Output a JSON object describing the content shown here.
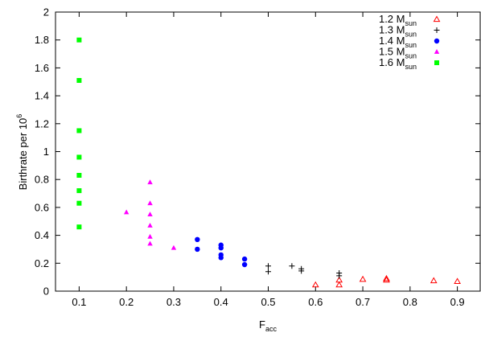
{
  "chart_data": {
    "type": "scatter",
    "title": "",
    "xlabel": {
      "base": "F",
      "sub": "acc"
    },
    "ylabel": {
      "base": "Birthrate per 10",
      "sup": "6"
    },
    "xlim": [
      0.05,
      0.95
    ],
    "ylim": [
      0,
      2
    ],
    "xticks": [
      {
        "value": 0.1,
        "label": "0.1"
      },
      {
        "value": 0.2,
        "label": "0.2"
      },
      {
        "value": 0.3,
        "label": "0.3"
      },
      {
        "value": 0.4,
        "label": "0.4"
      },
      {
        "value": 0.5,
        "label": "0.5"
      },
      {
        "value": 0.6,
        "label": "0.6"
      },
      {
        "value": 0.7,
        "label": "0.7"
      },
      {
        "value": 0.8,
        "label": "0.8"
      },
      {
        "value": 0.9,
        "label": "0.9"
      }
    ],
    "yticks": [
      {
        "value": 0,
        "label": "0"
      },
      {
        "value": 0.2,
        "label": "0.2"
      },
      {
        "value": 0.4,
        "label": "0.4"
      },
      {
        "value": 0.6,
        "label": "0.6"
      },
      {
        "value": 0.8,
        "label": "0.8"
      },
      {
        "value": 1,
        "label": "1"
      },
      {
        "value": 1.2,
        "label": "1.2"
      },
      {
        "value": 1.4,
        "label": "1.4"
      },
      {
        "value": 1.6,
        "label": "1.6"
      },
      {
        "value": 1.8,
        "label": "1.8"
      },
      {
        "value": 2,
        "label": "2"
      }
    ],
    "grid": false,
    "legend_position": "top-right",
    "series": [
      {
        "name": {
          "base": "1.2 M",
          "sub": "sun"
        },
        "marker": "open-triangle",
        "color": "#ff0000",
        "points": [
          [
            0.6,
            0.045
          ],
          [
            0.65,
            0.045
          ],
          [
            0.65,
            0.08
          ],
          [
            0.7,
            0.085
          ],
          [
            0.75,
            0.08
          ],
          [
            0.75,
            0.09
          ],
          [
            0.85,
            0.075
          ],
          [
            0.9,
            0.07
          ]
        ]
      },
      {
        "name": {
          "base": "1.3 M",
          "sub": "sun"
        },
        "marker": "plus",
        "color": "#000000",
        "points": [
          [
            0.5,
            0.14
          ],
          [
            0.5,
            0.18
          ],
          [
            0.55,
            0.18
          ],
          [
            0.57,
            0.145
          ],
          [
            0.57,
            0.16
          ],
          [
            0.65,
            0.11
          ],
          [
            0.65,
            0.13
          ]
        ]
      },
      {
        "name": {
          "base": "1.4 M",
          "sub": "sun"
        },
        "marker": "filled-circle",
        "color": "#0000ff",
        "points": [
          [
            0.35,
            0.3
          ],
          [
            0.35,
            0.37
          ],
          [
            0.4,
            0.24
          ],
          [
            0.4,
            0.26
          ],
          [
            0.4,
            0.31
          ],
          [
            0.4,
            0.33
          ],
          [
            0.45,
            0.19
          ],
          [
            0.45,
            0.23
          ]
        ]
      },
      {
        "name": {
          "base": "1.5 M",
          "sub": "sun"
        },
        "marker": "filled-triangle",
        "color": "#ff00ff",
        "points": [
          [
            0.2,
            0.565
          ],
          [
            0.25,
            0.34
          ],
          [
            0.25,
            0.39
          ],
          [
            0.25,
            0.47
          ],
          [
            0.25,
            0.55
          ],
          [
            0.25,
            0.63
          ],
          [
            0.25,
            0.78
          ],
          [
            0.3,
            0.31
          ]
        ]
      },
      {
        "name": {
          "base": "1.6 M",
          "sub": "sun"
        },
        "marker": "filled-square",
        "color": "#00ff00",
        "points": [
          [
            0.1,
            0.46
          ],
          [
            0.1,
            0.63
          ],
          [
            0.1,
            0.72
          ],
          [
            0.1,
            0.83
          ],
          [
            0.1,
            0.96
          ],
          [
            0.1,
            1.15
          ],
          [
            0.1,
            1.51
          ],
          [
            0.1,
            1.8
          ]
        ]
      }
    ]
  }
}
